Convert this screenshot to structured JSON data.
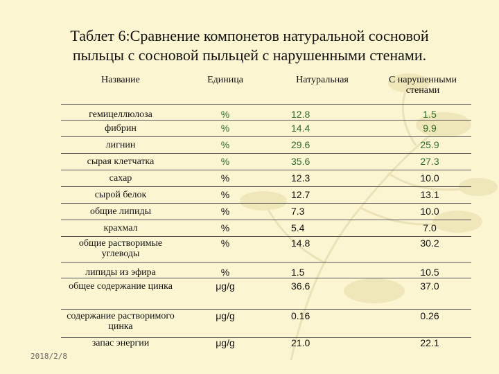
{
  "title_line1": "Таблет 6:Сравнение компонетов натуральной сосновой",
  "title_line2": "пыльцы с сосновой пыльцей с нарушенными стенами.",
  "date": "2018/2/8",
  "table": {
    "headers": [
      "Название",
      "Единица",
      "Натуральная",
      "С нарушенными стенами"
    ],
    "rows": [
      {
        "name": "гемицеллюлоза",
        "unit": "%",
        "natural": "12.8",
        "broken": "1.5"
      },
      {
        "name": "фибрин",
        "unit": "%",
        "natural": "14.4",
        "broken": "9.9"
      },
      {
        "name": "лигнин",
        "unit": "%",
        "natural": "29.6",
        "broken": "25.9"
      },
      {
        "name": "сырая клетчатка",
        "unit": "%",
        "natural": "35.6",
        "broken": "27.3"
      },
      {
        "name": "сахар",
        "unit": "%",
        "natural": "12.3",
        "broken": "10.0"
      },
      {
        "name": "сырой белок",
        "unit": "%",
        "natural": "12.7",
        "broken": "13.1"
      },
      {
        "name": "общие липиды",
        "unit": "%",
        "natural": "7.3",
        "broken": "10.0"
      },
      {
        "name": "крахмал",
        "unit": "%",
        "natural": "5.4",
        "broken": "7.0"
      },
      {
        "name": "общие растворимые углеводы",
        "unit": "%",
        "natural": "14.8",
        "broken": "30.2"
      },
      {
        "name": "липиды из эфира",
        "unit": "%",
        "natural": "1.5",
        "broken": "10.5"
      },
      {
        "name": "общее содержание цинка",
        "unit": "μg/g",
        "natural": "36.6",
        "broken": "37.0"
      },
      {
        "name": "содержание растворимого цинка",
        "unit": "μg/g",
        "natural": "0.16",
        "broken": "0.26"
      },
      {
        "name": "запас энергии",
        "unit": "μg/g",
        "natural": "21.0",
        "broken": "22.1"
      }
    ]
  }
}
